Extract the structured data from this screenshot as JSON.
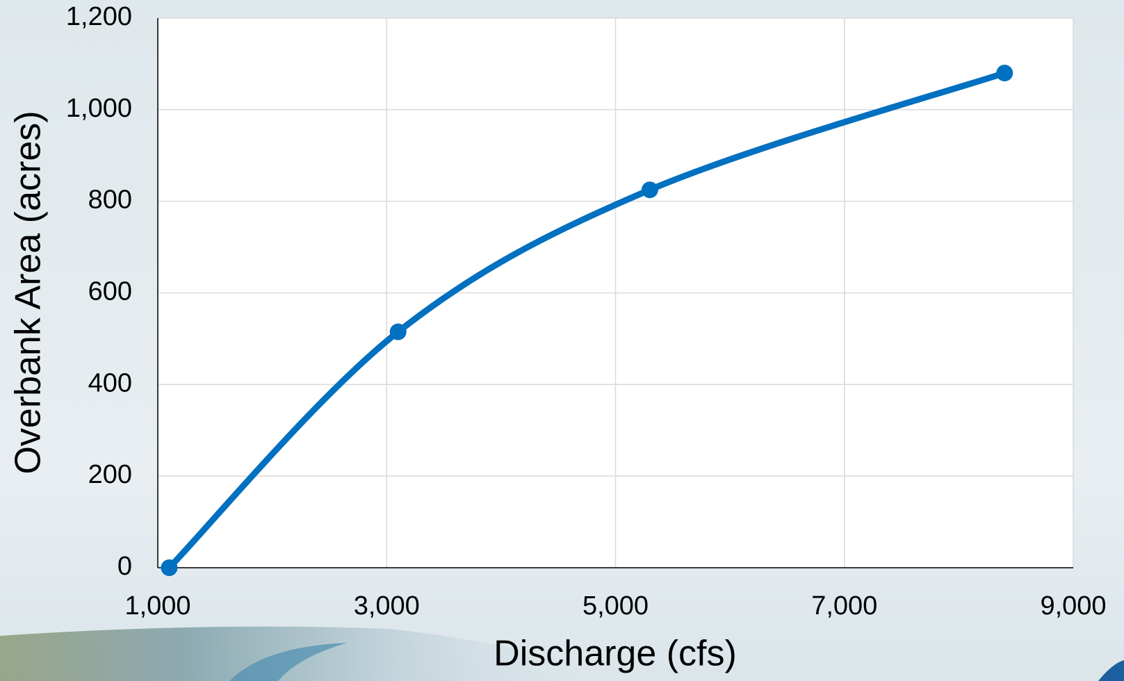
{
  "chart_data": {
    "type": "line",
    "x_label": "Discharge (cfs)",
    "y_label": "Overbank Area (acres)",
    "series": [
      {
        "name": "Overbank Area",
        "color": "#0070c0",
        "x": [
          1100,
          3100,
          5300,
          8400
        ],
        "values": [
          0,
          515,
          825,
          1080
        ]
      }
    ],
    "xlim": [
      1000,
      9000
    ],
    "xticks": [
      {
        "value": 1000,
        "label": "1,000"
      },
      {
        "value": 3000,
        "label": "3,000"
      },
      {
        "value": 5000,
        "label": "5,000"
      },
      {
        "value": 7000,
        "label": "7,000"
      },
      {
        "value": 9000,
        "label": "9,000"
      }
    ],
    "ylim": [
      0,
      1200
    ],
    "yticks": [
      0,
      200,
      400,
      600,
      800,
      {
        "value": 1000,
        "label": "1,000"
      },
      {
        "value": 1200,
        "label": "1,200"
      }
    ],
    "grid": true,
    "smooth": true,
    "markers": true
  }
}
